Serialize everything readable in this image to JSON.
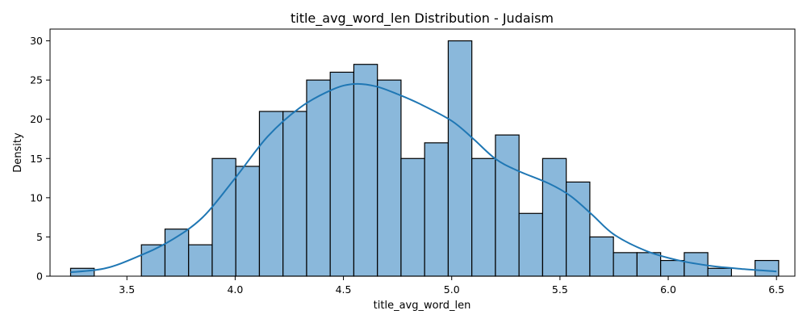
{
  "chart_data": {
    "type": "bar",
    "title": "title_avg_word_len Distribution - Judaism",
    "xlabel": "title_avg_word_len",
    "ylabel": "Density",
    "xlim": [
      3.145,
      6.585
    ],
    "ylim": [
      0,
      31.5
    ],
    "xticks": [
      3.5,
      4.0,
      4.5,
      5.0,
      5.5,
      6.0,
      6.5
    ],
    "xtick_labels": [
      "3.5",
      "4.0",
      "4.5",
      "5.0",
      "5.5",
      "6.0",
      "6.5"
    ],
    "yticks": [
      0,
      5,
      10,
      15,
      20,
      25,
      30
    ],
    "ytick_labels": [
      "0",
      "5",
      "10",
      "15",
      "20",
      "25",
      "30"
    ],
    "bin_start": 3.24,
    "bin_width": 0.109,
    "values": [
      1,
      0,
      0,
      4,
      6,
      4,
      15,
      14,
      21,
      21,
      25,
      26,
      27,
      25,
      15,
      17,
      30,
      15,
      18,
      8,
      15,
      12,
      5,
      3,
      3,
      2,
      3,
      1,
      0,
      2
    ],
    "kde": {
      "x": [
        3.24,
        3.4,
        3.55,
        3.7,
        3.85,
        4.0,
        4.15,
        4.3,
        4.45,
        4.55,
        4.65,
        4.75,
        4.85,
        5.0,
        5.1,
        5.2,
        5.3,
        5.45,
        5.55,
        5.65,
        5.75,
        5.9,
        6.05,
        6.2,
        6.35,
        6.5
      ],
      "y": [
        0.5,
        1.0,
        2.5,
        4.5,
        7.5,
        12.5,
        17.8,
        21.5,
        23.8,
        24.5,
        24.2,
        23.2,
        22.0,
        19.8,
        17.5,
        15.0,
        13.5,
        11.8,
        10.2,
        7.8,
        5.3,
        3.2,
        2.0,
        1.3,
        0.9,
        0.6
      ]
    },
    "legend": "none",
    "grid": false
  },
  "colors": {
    "bar_fill": "#8ab8db",
    "kde_line": "#1f77b4"
  }
}
